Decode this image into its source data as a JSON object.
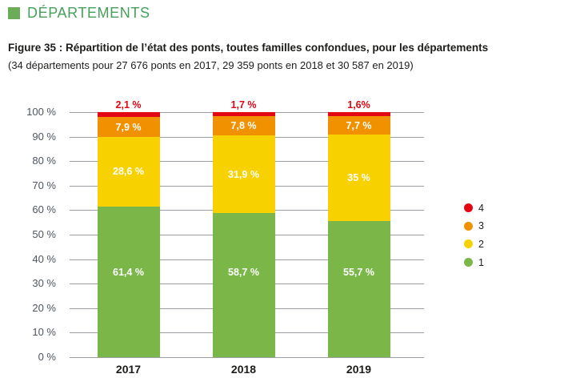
{
  "header": {
    "section_title": "DÉPARTEMENTS"
  },
  "figure": {
    "title": "Figure 35 : Répartition de l’état des ponts, toutes familles confondues, pour les départements",
    "subtitle": "(34 départements pour 27 676 ponts en 2017, 29 359 ponts en 2018 et 30 587 en 2019)"
  },
  "colors": {
    "header_text": "#46a05a",
    "header_square": "#6aac58",
    "grid": "#9b9fa3",
    "axis_text": "#4d5560",
    "state_1_green": "#7ab648",
    "state_2_yellow": "#f8d200",
    "state_3_orange": "#f29100",
    "state_4_red": "#e30613"
  },
  "chart_data": {
    "type": "bar",
    "stacked": true,
    "title": "Répartition de l’état des ponts, toutes familles confondues, pour les départements",
    "categories": [
      "2017",
      "2018",
      "2019"
    ],
    "series": [
      {
        "name": "1",
        "color": "#7ab648",
        "values": [
          61.4,
          58.7,
          55.7
        ],
        "labels": [
          "61,4 %",
          "58,7 %",
          "55,7 %"
        ],
        "label_color": "#ffffff",
        "label_position": "inside"
      },
      {
        "name": "2",
        "color": "#f8d200",
        "values": [
          28.6,
          31.9,
          35
        ],
        "labels": [
          "28,6 %",
          "31,9 %",
          "35 %"
        ],
        "label_color": "#ffffff",
        "label_position": "inside"
      },
      {
        "name": "3",
        "color": "#f29100",
        "values": [
          7.9,
          7.8,
          7.7
        ],
        "labels": [
          "7,9 %",
          "7,8 %",
          "7,7 %"
        ],
        "label_color": "#ffffff",
        "label_position": "inside"
      },
      {
        "name": "4",
        "color": "#e30613",
        "values": [
          2.1,
          1.7,
          1.6
        ],
        "labels": [
          "2,1 %",
          "1,7 %",
          "1,6%"
        ],
        "label_color": "#e30613",
        "label_position": "above"
      }
    ],
    "xlabel": "",
    "ylabel": "",
    "ylim": [
      0,
      100
    ],
    "y_ticks": [
      "0 %",
      "10 %",
      "20 %",
      "30 %",
      "40 %",
      "50 %",
      "60 %",
      "70 %",
      "80 %",
      "90 %",
      "100 %"
    ],
    "grid": true,
    "legend": {
      "position": "right",
      "items": [
        {
          "label": "4",
          "color": "#e30613"
        },
        {
          "label": "3",
          "color": "#f29100"
        },
        {
          "label": "2",
          "color": "#f8d200"
        },
        {
          "label": "1",
          "color": "#7ab648"
        }
      ]
    }
  }
}
